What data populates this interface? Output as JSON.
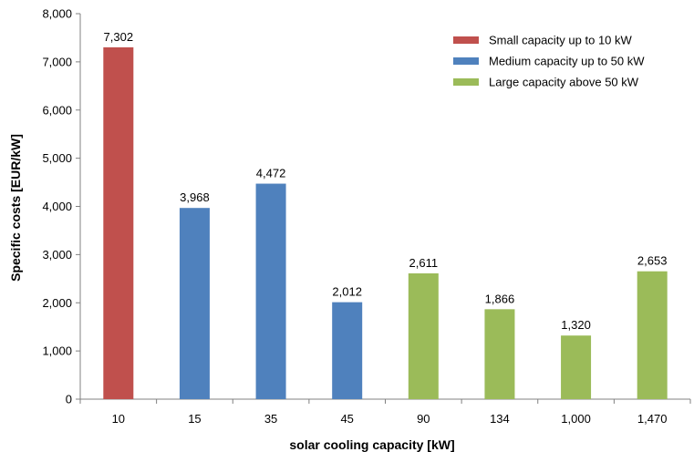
{
  "chart_data": {
    "type": "bar",
    "title": "",
    "xlabel": "solar cooling capacity [kW]",
    "ylabel": "Specific costs  [EUR/kW]",
    "ylim": [
      0,
      8000
    ],
    "yticks": [
      "0",
      "1,000",
      "2,000",
      "3,000",
      "4,000",
      "5,000",
      "6,000",
      "7,000",
      "8,000"
    ],
    "categories": [
      "10",
      "15",
      "35",
      "45",
      "90",
      "134",
      "1,000",
      "1,470"
    ],
    "values": [
      7302,
      3968,
      4472,
      2012,
      2611,
      1866,
      1320,
      2653
    ],
    "value_labels": [
      "7,302",
      "3,968",
      "4,472",
      "2,012",
      "2,611",
      "1,866",
      "1,320",
      "2,653"
    ],
    "bar_groups": [
      0,
      1,
      1,
      1,
      2,
      2,
      2,
      2
    ],
    "legend_position": "top-right",
    "grid": false,
    "series": [
      {
        "name": "Small capacity up to 10 kW",
        "color": "#C0504D"
      },
      {
        "name": "Medium capacity up to 50 kW",
        "color": "#4F81BD"
      },
      {
        "name": "Large capacity above 50 kW",
        "color": "#9BBB59"
      }
    ]
  }
}
